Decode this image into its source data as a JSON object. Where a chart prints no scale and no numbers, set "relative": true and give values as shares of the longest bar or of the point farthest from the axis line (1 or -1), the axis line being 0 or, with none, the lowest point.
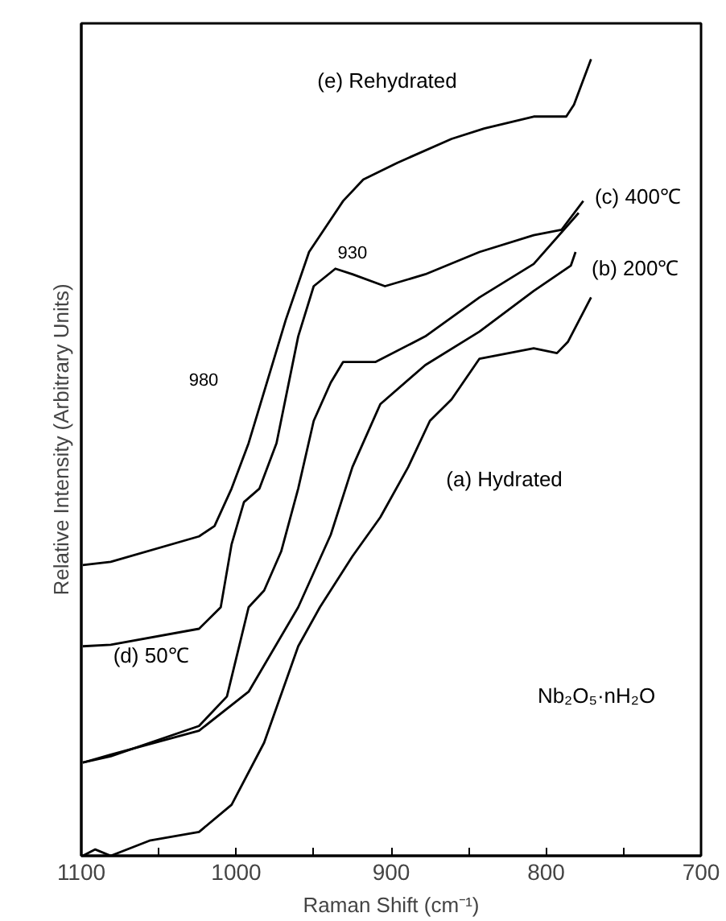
{
  "chart_data": {
    "type": "line",
    "relative": true,
    "xlabel": "Raman Shift (cm⁻¹)",
    "ylabel": "Relative Intensity (Arbitrary Units)",
    "xlim": [
      1100,
      700
    ],
    "xticks": [
      1100,
      {
        "value": 1050,
        "label": null
      },
      1000,
      {
        "value": 950,
        "label": null
      },
      900,
      {
        "value": 850,
        "label": null
      },
      800,
      {
        "value": 750,
        "label": null
      },
      700
    ],
    "grid": false,
    "marker": "none",
    "line_style": "solid",
    "series": [
      {
        "name": "(e) Rehydrated",
        "color": "#000000",
        "x": [
          1099,
          1081,
          1024,
          1014,
          1003,
          992,
          968,
          953,
          931,
          918,
          896,
          861,
          840,
          808,
          787,
          782,
          771
        ],
        "values": [
          0.365,
          0.369,
          0.401,
          0.414,
          0.461,
          0.518,
          0.673,
          0.758,
          0.822,
          0.849,
          0.87,
          0.9,
          0.913,
          0.928,
          0.928,
          0.943,
          1.0
        ]
      },
      {
        "name": "(d) 50℃",
        "color": "#000000",
        "x": [
          1099,
          1081,
          1024,
          1010,
          1003,
          995,
          985,
          974,
          960,
          950,
          936,
          925,
          904,
          878,
          843,
          808,
          790,
          776
        ],
        "values": [
          0.263,
          0.265,
          0.285,
          0.312,
          0.391,
          0.444,
          0.461,
          0.518,
          0.652,
          0.715,
          0.737,
          0.73,
          0.715,
          0.73,
          0.758,
          0.779,
          0.786,
          0.822
        ]
      },
      {
        "name": "(c) 400℃",
        "color": "#000000",
        "x": [
          1099,
          1081,
          1024,
          1006,
          1000,
          992,
          982,
          971,
          960,
          950,
          939,
          931,
          910,
          878,
          843,
          808,
          779
        ],
        "values": [
          0.117,
          0.125,
          0.163,
          0.2,
          0.248,
          0.312,
          0.333,
          0.382,
          0.461,
          0.546,
          0.594,
          0.62,
          0.62,
          0.652,
          0.701,
          0.743,
          0.807
        ]
      },
      {
        "name": "(b) 200℃",
        "color": "#000000",
        "x": [
          1099,
          1081,
          1024,
          992,
          960,
          939,
          925,
          907,
          878,
          843,
          808,
          784,
          781
        ],
        "values": [
          0.117,
          0.127,
          0.157,
          0.206,
          0.312,
          0.403,
          0.488,
          0.567,
          0.616,
          0.658,
          0.709,
          0.741,
          0.758
        ]
      },
      {
        "name": "(a) Hydrated",
        "color": "#000000",
        "x": [
          1099,
          1091,
          1081,
          1056,
          1024,
          1003,
          982,
          960,
          946,
          925,
          907,
          889,
          875,
          861,
          843,
          808,
          793,
          786,
          771
        ],
        "values": [
          0,
          0.008,
          0,
          0.019,
          0.03,
          0.064,
          0.142,
          0.263,
          0.312,
          0.376,
          0.425,
          0.488,
          0.546,
          0.573,
          0.624,
          0.637,
          0.631,
          0.645,
          0.701
        ]
      }
    ],
    "annotations": [
      {
        "text": "930",
        "x": 925,
        "y": 0.73
      },
      "980",
      "Nb₂O₅·nH₂O"
    ]
  }
}
